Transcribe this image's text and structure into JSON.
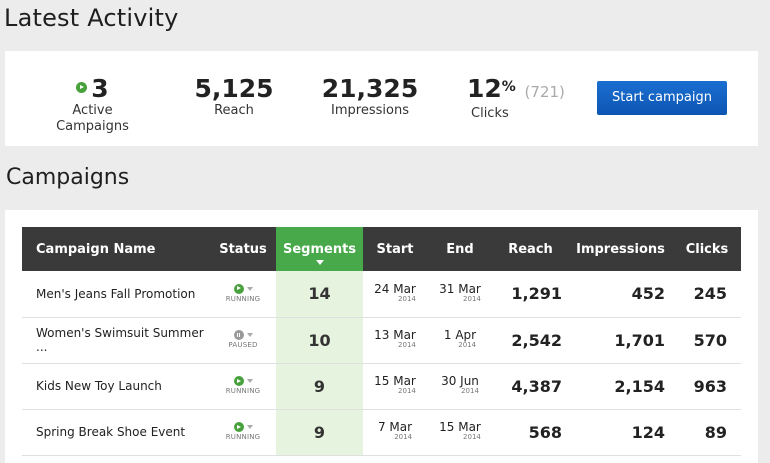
{
  "header": {
    "title": "Latest Activity"
  },
  "stats": {
    "active": {
      "value": "3",
      "label": "Active Campaigns"
    },
    "reach": {
      "value": "5,125",
      "label": "Reach"
    },
    "impressions": {
      "value": "21,325",
      "label": "Impressions"
    },
    "clicks": {
      "value": "12",
      "pct": "%",
      "count": "(721)",
      "label": "Clicks"
    },
    "button_label": "Start campaign"
  },
  "campaigns": {
    "title": "Campaigns",
    "columns": [
      "Campaign Name",
      "Status",
      "Segments",
      "Start",
      "End",
      "Reach",
      "Impressions",
      "Clicks"
    ],
    "rows": [
      {
        "name": "Men's Jeans Fall Promotion",
        "status": "RUNNING",
        "status_icon": "play-icon",
        "segments": "14",
        "start": "24 Mar",
        "start_year": "2014",
        "end": "31 Mar",
        "end_year": "2014",
        "reach": "1,291",
        "impressions": "452",
        "clicks": "245"
      },
      {
        "name": "Women's Swimsuit Summer ...",
        "status": "PAUSED",
        "status_icon": "pause-icon",
        "segments": "10",
        "start": "13 Mar",
        "start_year": "2014",
        "end": "1 Apr",
        "end_year": "2014",
        "reach": "2,542",
        "impressions": "1,701",
        "clicks": "570"
      },
      {
        "name": "Kids New Toy Launch",
        "status": "RUNNING",
        "status_icon": "play-icon",
        "segments": "9",
        "start": "15 Mar",
        "start_year": "2014",
        "end": "30 Jun",
        "end_year": "2014",
        "reach": "4,387",
        "impressions": "2,154",
        "clicks": "963"
      },
      {
        "name": "Spring Break Shoe Event",
        "status": "RUNNING",
        "status_icon": "play-icon",
        "segments": "9",
        "start": "7 Mar",
        "start_year": "2014",
        "end": "15 Mar",
        "end_year": "2014",
        "reach": "568",
        "impressions": "124",
        "clicks": "89"
      }
    ]
  },
  "colors": {
    "accent_green": "#48a94a",
    "button_blue": "#1565c8",
    "header_dark": "#3a3a3a",
    "segment_bg": "#e6f3df"
  }
}
